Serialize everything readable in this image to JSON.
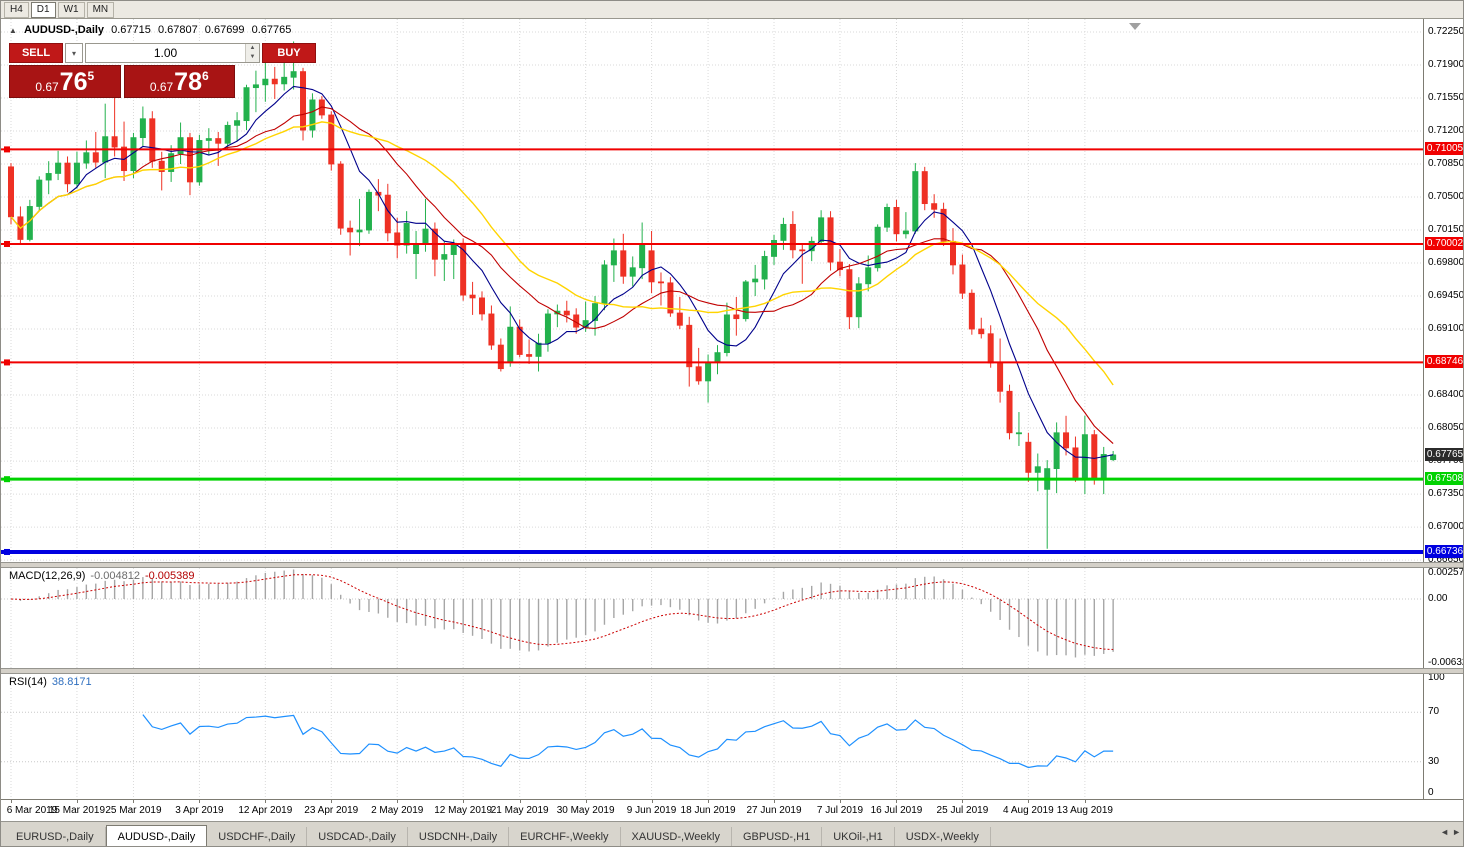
{
  "toolbar": {
    "timeframes": [
      {
        "label": "H4",
        "active": false
      },
      {
        "label": "D1",
        "active": true
      },
      {
        "label": "W1",
        "active": false
      },
      {
        "label": "MN",
        "active": false
      }
    ]
  },
  "chart": {
    "title": {
      "toggle_icon": "▲",
      "symbol": "AUDUSD-,Daily",
      "open": "0.67715",
      "high": "0.67807",
      "low": "0.67699",
      "close": "0.67765"
    },
    "one_click": {
      "sell_label": "SELL",
      "buy_label": "BUY",
      "volume": "1.00",
      "sell_price": {
        "small": "0.67",
        "big": "76",
        "sup": "5"
      },
      "buy_price": {
        "small": "0.67",
        "big": "78",
        "sup": "6"
      },
      "icons": {
        "dropdown": "▾",
        "spin_up": "▲",
        "spin_down": "▼"
      },
      "colors": {
        "button": "#c01818",
        "price_box": "#a81414"
      }
    },
    "price_axis": {
      "labels": [
        "0.72250",
        "0.71900",
        "0.71550",
        "0.71200",
        "0.70850",
        "0.70500",
        "0.70150",
        "0.69800",
        "0.69450",
        "0.69100",
        "0.68750",
        "0.68400",
        "0.68050",
        "0.67700",
        "0.67350",
        "0.67000",
        "0.66650"
      ]
    },
    "hlines": [
      {
        "label": "0.71005",
        "price": 0.71005,
        "color": "#f00000",
        "width": 2
      },
      {
        "label": "0.70002",
        "price": 0.70002,
        "color": "#f00000",
        "width": 2
      },
      {
        "label": "0.68746",
        "price": 0.68746,
        "color": "#f00000",
        "width": 2
      },
      {
        "label": "0.67508",
        "price": 0.67508,
        "color": "#00d200",
        "width": 3
      },
      {
        "label": "0.66736",
        "price": 0.66736,
        "color": "#0000e0",
        "width": 4
      }
    ],
    "current_price": {
      "label": "0.67765",
      "price": 0.67765,
      "color": "#2b2b2b"
    },
    "colors": {
      "up": "#23b14d",
      "down": "#ee3124",
      "ma_fast": "#00008b",
      "ma_mid": "#c00000",
      "ma_slow": "#ffd400",
      "grid": "#dadada"
    }
  },
  "chart_data": {
    "type": "candlestick",
    "symbol": "AUDUSD",
    "timeframe": "Daily",
    "x_labels": [
      "6 Mar 2019",
      "15 Mar 2019",
      "25 Mar 2019",
      "3 Apr 2019",
      "12 Apr 2019",
      "23 Apr 2019",
      "2 May 2019",
      "12 May 2019",
      "21 May 2019",
      "30 May 2019",
      "9 Jun 2019",
      "18 Jun 2019",
      "27 Jun 2019",
      "7 Jul 2019",
      "16 Jul 2019",
      "25 Jul 2019",
      "4 Aug 2019",
      "13 Aug 2019"
    ],
    "x_label_indices": [
      0,
      7,
      13,
      20,
      27,
      34,
      41,
      48,
      54,
      61,
      68,
      74,
      81,
      88,
      94,
      101,
      108,
      114
    ],
    "y_range_hint": {
      "top": 0.7239,
      "bottom": 0.6664
    },
    "moving_averages": [
      {
        "name": "fast",
        "period": 7,
        "color": "#00008b"
      },
      {
        "name": "mid",
        "period": 14,
        "color": "#c00000"
      },
      {
        "name": "slow",
        "period": 21,
        "color": "#ffd400"
      }
    ],
    "candles": [
      [
        0.7082,
        0.7086,
        0.7021,
        0.7029
      ],
      [
        0.7029,
        0.704,
        0.7,
        0.7005
      ],
      [
        0.7005,
        0.7047,
        0.7003,
        0.704
      ],
      [
        0.704,
        0.7072,
        0.7035,
        0.7068
      ],
      [
        0.7068,
        0.7088,
        0.7053,
        0.7075
      ],
      [
        0.7075,
        0.7099,
        0.7068,
        0.7086
      ],
      [
        0.7086,
        0.7093,
        0.7055,
        0.7064
      ],
      [
        0.7064,
        0.7098,
        0.7059,
        0.7086
      ],
      [
        0.7086,
        0.711,
        0.708,
        0.7097
      ],
      [
        0.7097,
        0.7119,
        0.7081,
        0.7087
      ],
      [
        0.7087,
        0.7149,
        0.707,
        0.7114
      ],
      [
        0.7114,
        0.7168,
        0.7093,
        0.7103
      ],
      [
        0.7103,
        0.713,
        0.7067,
        0.7078
      ],
      [
        0.7078,
        0.7118,
        0.707,
        0.7113
      ],
      [
        0.7113,
        0.7146,
        0.7103,
        0.7133
      ],
      [
        0.7133,
        0.7141,
        0.7081,
        0.7088
      ],
      [
        0.7088,
        0.7098,
        0.7057,
        0.7077
      ],
      [
        0.7077,
        0.7105,
        0.7066,
        0.7096
      ],
      [
        0.7096,
        0.7129,
        0.7085,
        0.7113
      ],
      [
        0.7113,
        0.7118,
        0.7052,
        0.7066
      ],
      [
        0.7066,
        0.7116,
        0.7062,
        0.711
      ],
      [
        0.711,
        0.7123,
        0.7095,
        0.7112
      ],
      [
        0.7112,
        0.7119,
        0.7083,
        0.7107
      ],
      [
        0.7107,
        0.713,
        0.71,
        0.7126
      ],
      [
        0.7126,
        0.714,
        0.7109,
        0.7131
      ],
      [
        0.7131,
        0.7169,
        0.7121,
        0.7166
      ],
      [
        0.7166,
        0.7184,
        0.714,
        0.7169
      ],
      [
        0.7169,
        0.72,
        0.7151,
        0.7175
      ],
      [
        0.7175,
        0.7188,
        0.7154,
        0.717
      ],
      [
        0.717,
        0.7206,
        0.7163,
        0.7177
      ],
      [
        0.7177,
        0.7215,
        0.7164,
        0.7183
      ],
      [
        0.7183,
        0.7187,
        0.711,
        0.7121
      ],
      [
        0.7121,
        0.716,
        0.7113,
        0.7153
      ],
      [
        0.7153,
        0.7157,
        0.7133,
        0.7137
      ],
      [
        0.7137,
        0.7141,
        0.7078,
        0.7085
      ],
      [
        0.7085,
        0.7088,
        0.701,
        0.7017
      ],
      [
        0.7017,
        0.7025,
        0.6988,
        0.7013
      ],
      [
        0.7013,
        0.7048,
        0.6998,
        0.7015
      ],
      [
        0.7015,
        0.7058,
        0.7011,
        0.7055
      ],
      [
        0.7055,
        0.7069,
        0.7035,
        0.7052
      ],
      [
        0.7052,
        0.7064,
        0.7003,
        0.7012
      ],
      [
        0.7012,
        0.7028,
        0.6985,
        0.6999
      ],
      [
        0.6999,
        0.7035,
        0.699,
        0.7022
      ],
      [
        0.699,
        0.7014,
        0.6963,
        0.7
      ],
      [
        0.7,
        0.7048,
        0.6992,
        0.7016
      ],
      [
        0.7016,
        0.7023,
        0.6966,
        0.6984
      ],
      [
        0.6984,
        0.7003,
        0.6961,
        0.6989
      ],
      [
        0.6989,
        0.7005,
        0.6963,
        0.7001
      ],
      [
        0.7001,
        0.7006,
        0.694,
        0.6946
      ],
      [
        0.6946,
        0.696,
        0.6925,
        0.6943
      ],
      [
        0.6943,
        0.695,
        0.6919,
        0.6926
      ],
      [
        0.6926,
        0.6935,
        0.6888,
        0.6893
      ],
      [
        0.6893,
        0.69,
        0.6865,
        0.6868
      ],
      [
        0.6876,
        0.6934,
        0.687,
        0.6912
      ],
      [
        0.6912,
        0.692,
        0.688,
        0.6883
      ],
      [
        0.6883,
        0.6899,
        0.6873,
        0.6881
      ],
      [
        0.6881,
        0.6905,
        0.6865,
        0.6895
      ],
      [
        0.6895,
        0.6931,
        0.6886,
        0.6926
      ],
      [
        0.6926,
        0.6936,
        0.6912,
        0.6929
      ],
      [
        0.6929,
        0.694,
        0.6917,
        0.6925
      ],
      [
        0.6925,
        0.6932,
        0.6905,
        0.6912
      ],
      [
        0.6912,
        0.6939,
        0.6907,
        0.6919
      ],
      [
        0.6919,
        0.6945,
        0.6903,
        0.6937
      ],
      [
        0.6937,
        0.6983,
        0.693,
        0.6978
      ],
      [
        0.6978,
        0.7006,
        0.696,
        0.6993
      ],
      [
        0.6993,
        0.7011,
        0.6958,
        0.6966
      ],
      [
        0.6966,
        0.6987,
        0.6955,
        0.6975
      ],
      [
        0.6975,
        0.7023,
        0.6963,
        0.7
      ],
      [
        0.6993,
        0.7014,
        0.6948,
        0.696
      ],
      [
        0.696,
        0.697,
        0.6935,
        0.6959
      ],
      [
        0.6959,
        0.6965,
        0.6923,
        0.6927
      ],
      [
        0.6927,
        0.6944,
        0.691,
        0.6914
      ],
      [
        0.6914,
        0.6923,
        0.6849,
        0.687
      ],
      [
        0.687,
        0.689,
        0.6851,
        0.6855
      ],
      [
        0.6855,
        0.6883,
        0.6832,
        0.6875
      ],
      [
        0.6875,
        0.6893,
        0.6862,
        0.6885
      ],
      [
        0.6885,
        0.6938,
        0.6881,
        0.6925
      ],
      [
        0.6925,
        0.6944,
        0.6903,
        0.6921
      ],
      [
        0.6921,
        0.6962,
        0.6918,
        0.696
      ],
      [
        0.696,
        0.6978,
        0.6945,
        0.6963
      ],
      [
        0.6963,
        0.6993,
        0.6952,
        0.6987
      ],
      [
        0.6987,
        0.701,
        0.6978,
        0.7004
      ],
      [
        0.7004,
        0.7028,
        0.6994,
        0.7021
      ],
      [
        0.7021,
        0.7035,
        0.6985,
        0.6994
      ],
      [
        0.6994,
        0.7,
        0.6958,
        0.6993
      ],
      [
        0.6993,
        0.7008,
        0.6982,
        0.7003
      ],
      [
        0.7003,
        0.7036,
        0.7,
        0.7028
      ],
      [
        0.7028,
        0.7035,
        0.6972,
        0.6981
      ],
      [
        0.6981,
        0.6995,
        0.6966,
        0.6973
      ],
      [
        0.6973,
        0.6979,
        0.691,
        0.6923
      ],
      [
        0.6923,
        0.6965,
        0.6911,
        0.6958
      ],
      [
        0.6958,
        0.6988,
        0.695,
        0.6975
      ],
      [
        0.6975,
        0.7021,
        0.6971,
        0.7018
      ],
      [
        0.7018,
        0.7043,
        0.7013,
        0.7039
      ],
      [
        0.7039,
        0.7047,
        0.7003,
        0.7011
      ],
      [
        0.7011,
        0.7034,
        0.7006,
        0.7014
      ],
      [
        0.7014,
        0.7086,
        0.7011,
        0.7077
      ],
      [
        0.7077,
        0.7082,
        0.7036,
        0.7043
      ],
      [
        0.7043,
        0.7053,
        0.7028,
        0.7037
      ],
      [
        0.7037,
        0.7044,
        0.6998,
        0.7003
      ],
      [
        0.7003,
        0.7017,
        0.6968,
        0.6978
      ],
      [
        0.6978,
        0.6989,
        0.6942,
        0.6948
      ],
      [
        0.6948,
        0.6952,
        0.6904,
        0.691
      ],
      [
        0.691,
        0.6922,
        0.69,
        0.6905
      ],
      [
        0.6905,
        0.6914,
        0.6869,
        0.6874
      ],
      [
        0.6874,
        0.69,
        0.6832,
        0.6844
      ],
      [
        0.6844,
        0.6851,
        0.6793,
        0.68
      ],
      [
        0.68,
        0.6822,
        0.6786,
        0.68
      ],
      [
        0.679,
        0.68,
        0.6748,
        0.6758
      ],
      [
        0.6758,
        0.6778,
        0.6738,
        0.6764
      ],
      [
        0.674,
        0.6771,
        0.6677,
        0.6762
      ],
      [
        0.6762,
        0.6811,
        0.6736,
        0.68
      ],
      [
        0.68,
        0.6818,
        0.6776,
        0.6784
      ],
      [
        0.6784,
        0.6796,
        0.6748,
        0.6752
      ],
      [
        0.6752,
        0.6818,
        0.6735,
        0.6798
      ],
      [
        0.6798,
        0.6803,
        0.6745,
        0.675
      ],
      [
        0.675,
        0.6785,
        0.6735,
        0.6777
      ],
      [
        0.67715,
        0.67807,
        0.67699,
        0.67765
      ]
    ]
  },
  "macd": {
    "label": "MACD(12,26,9)",
    "value_main": "-0.004812",
    "value_signal": "-0.005389",
    "params": {
      "fast": 12,
      "slow": 26,
      "signal": 9
    },
    "axis_labels": [
      "0.002574",
      "0.00",
      "-0.006326"
    ],
    "range": {
      "max": 0.002574,
      "min": -0.006326
    },
    "colors": {
      "histogram": "#a6a6a6",
      "signal": "#cc0000"
    }
  },
  "rsi": {
    "label": "RSI(14)",
    "value": "38.8171",
    "period": 14,
    "levels": [
      70,
      30
    ],
    "axis_labels": [
      "100",
      "70",
      "30",
      "0"
    ],
    "color": "#1e90ff"
  },
  "tabs": {
    "items": [
      {
        "label": "EURUSD-,Daily",
        "active": false
      },
      {
        "label": "AUDUSD-,Daily",
        "active": true
      },
      {
        "label": "USDCHF-,Daily",
        "active": false
      },
      {
        "label": "USDCAD-,Daily",
        "active": false
      },
      {
        "label": "USDCNH-,Daily",
        "active": false
      },
      {
        "label": "EURCHF-,Weekly",
        "active": false
      },
      {
        "label": "XAUUSD-,Weekly",
        "active": false
      },
      {
        "label": "GBPUSD-,H1",
        "active": false
      },
      {
        "label": "UKOil-,H1",
        "active": false
      },
      {
        "label": "USDX-,Weekly",
        "active": false
      }
    ],
    "scroll_left": "◄",
    "scroll_right": "►"
  }
}
